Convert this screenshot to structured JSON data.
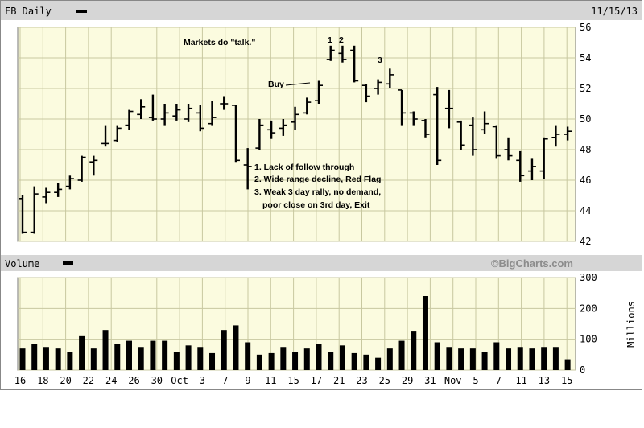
{
  "header": {
    "symbol_label": "FB Daily",
    "date": "11/15/13",
    "volume_label": "Volume",
    "watermark": "©BigCharts.com",
    "volume_units": "Millions"
  },
  "annotations": {
    "title": "Markets do \"talk.\"",
    "buy": "Buy",
    "marker_1": "1",
    "marker_2": "2",
    "marker_3": "3",
    "note_lines": [
      "1. Lack of follow through",
      "2. Wide range decline, Red Flag",
      "3. Weak 3 day rally, no demand,",
      "poor close on 3rd day, Exit"
    ]
  },
  "colors": {
    "panel_bg": "#fbfbdf",
    "grid": "#c8c8a0",
    "bar": "#000000",
    "header_bg": "#d6d6d6"
  },
  "chart_data": [
    {
      "type": "ohlc",
      "title": "FB Daily",
      "ylim": [
        42,
        56
      ],
      "ytick_labels": [
        "42",
        "44",
        "46",
        "48",
        "50",
        "52",
        "54",
        "56"
      ],
      "xtick_labels": [
        "16",
        "18",
        "20",
        "22",
        "24",
        "26",
        "30",
        "Oct",
        "3",
        "7",
        "9",
        "11",
        "15",
        "17",
        "21",
        "23",
        "25",
        "29",
        "31",
        "Nov",
        "5",
        "7",
        "11",
        "13",
        "15"
      ],
      "grid": true,
      "bars": [
        {
          "date": "9/16",
          "open": 44.8,
          "high": 45.0,
          "low": 42.5,
          "close": 42.6
        },
        {
          "date": "9/17",
          "open": 42.6,
          "high": 45.6,
          "low": 42.5,
          "close": 45.1
        },
        {
          "date": "9/18",
          "open": 44.9,
          "high": 45.5,
          "low": 44.5,
          "close": 45.2
        },
        {
          "date": "9/19",
          "open": 45.2,
          "high": 45.8,
          "low": 44.9,
          "close": 45.4
        },
        {
          "date": "9/20",
          "open": 45.6,
          "high": 46.3,
          "low": 45.4,
          "close": 46.1
        },
        {
          "date": "9/23",
          "open": 46.0,
          "high": 47.6,
          "low": 45.9,
          "close": 47.5
        },
        {
          "date": "9/24",
          "open": 47.2,
          "high": 47.6,
          "low": 46.3,
          "close": 47.3
        },
        {
          "date": "9/25",
          "open": 48.4,
          "high": 49.6,
          "low": 48.2,
          "close": 48.4
        },
        {
          "date": "9/26",
          "open": 48.6,
          "high": 49.6,
          "low": 48.5,
          "close": 49.4
        },
        {
          "date": "9/27",
          "open": 49.6,
          "high": 50.6,
          "low": 49.3,
          "close": 50.5
        },
        {
          "date": "9/30",
          "open": 50.3,
          "high": 51.3,
          "low": 50.0,
          "close": 50.8
        },
        {
          "date": "10/1",
          "open": 50.1,
          "high": 51.6,
          "low": 49.9,
          "close": 50.0
        },
        {
          "date": "10/2",
          "open": 50.0,
          "high": 51.0,
          "low": 49.6,
          "close": 50.4
        },
        {
          "date": "10/3",
          "open": 50.2,
          "high": 51.0,
          "low": 49.9,
          "close": 50.6
        },
        {
          "date": "10/4",
          "open": 50.0,
          "high": 51.0,
          "low": 49.8,
          "close": 50.7
        },
        {
          "date": "10/7",
          "open": 50.4,
          "high": 50.9,
          "low": 49.2,
          "close": 49.4
        },
        {
          "date": "10/8",
          "open": 49.7,
          "high": 51.2,
          "low": 49.6,
          "close": 50.1
        },
        {
          "date": "10/9",
          "open": 51.0,
          "high": 51.5,
          "low": 50.6,
          "close": 51.0
        },
        {
          "date": "10/10",
          "open": 50.9,
          "high": 50.9,
          "low": 47.2,
          "close": 47.3
        },
        {
          "date": "10/11",
          "open": 47.0,
          "high": 48.1,
          "low": 45.4,
          "close": 46.9
        },
        {
          "date": "10/14",
          "open": 48.1,
          "high": 50.0,
          "low": 48.0,
          "close": 49.6
        },
        {
          "date": "10/15",
          "open": 49.3,
          "high": 49.9,
          "low": 48.7,
          "close": 49.1
        },
        {
          "date": "10/16",
          "open": 49.4,
          "high": 50.0,
          "low": 48.9,
          "close": 49.6
        },
        {
          "date": "10/17",
          "open": 49.8,
          "high": 50.8,
          "low": 49.3,
          "close": 50.3
        },
        {
          "date": "10/18",
          "open": 50.4,
          "high": 51.4,
          "low": 50.3,
          "close": 51.1
        },
        {
          "date": "10/21",
          "open": 51.2,
          "high": 52.5,
          "low": 51.0,
          "close": 52.2
        },
        {
          "date": "10/22",
          "open": 53.9,
          "high": 54.8,
          "low": 53.8,
          "close": 54.5
        },
        {
          "date": "10/23",
          "open": 54.3,
          "high": 54.8,
          "low": 53.7,
          "close": 53.9
        },
        {
          "date": "10/24",
          "open": 54.5,
          "high": 54.8,
          "low": 52.4,
          "close": 52.5
        },
        {
          "date": "10/25",
          "open": 52.2,
          "high": 52.3,
          "low": 51.1,
          "close": 51.5
        },
        {
          "date": "10/28",
          "open": 52.0,
          "high": 52.6,
          "low": 51.6,
          "close": 52.4
        },
        {
          "date": "10/29",
          "open": 52.3,
          "high": 53.3,
          "low": 52.0,
          "close": 52.9
        },
        {
          "date": "10/30",
          "open": 51.9,
          "high": 51.9,
          "low": 49.6,
          "close": 50.4
        },
        {
          "date": "10/31",
          "open": 50.4,
          "high": 50.5,
          "low": 49.6,
          "close": 50.0
        },
        {
          "date": "11/1",
          "open": 49.9,
          "high": 50.0,
          "low": 48.8,
          "close": 49.0
        },
        {
          "date": "11/4",
          "open": 51.6,
          "high": 52.1,
          "low": 47.0,
          "close": 47.3
        },
        {
          "date": "11/5",
          "open": 50.7,
          "high": 51.9,
          "low": 49.4,
          "close": 50.7
        },
        {
          "date": "11/6",
          "open": 49.8,
          "high": 49.9,
          "low": 48.0,
          "close": 48.3
        },
        {
          "date": "11/7",
          "open": 49.6,
          "high": 50.1,
          "low": 47.6,
          "close": 48.0
        },
        {
          "date": "11/8",
          "open": 49.3,
          "high": 50.5,
          "low": 49.0,
          "close": 49.7
        },
        {
          "date": "11/11",
          "open": 49.5,
          "high": 49.6,
          "low": 47.4,
          "close": 47.6
        },
        {
          "date": "11/12",
          "open": 48.0,
          "high": 48.8,
          "low": 47.3,
          "close": 47.6
        },
        {
          "date": "11/13",
          "open": 47.3,
          "high": 47.9,
          "low": 45.9,
          "close": 46.3
        },
        {
          "date": "11/14",
          "open": 46.6,
          "high": 47.4,
          "low": 46.0,
          "close": 46.9
        },
        {
          "date": "11/15",
          "open": 46.6,
          "high": 48.8,
          "low": 46.1,
          "close": 48.7
        },
        {
          "date": "11/15b",
          "open": 48.8,
          "high": 49.6,
          "low": 48.2,
          "close": 49.0
        },
        {
          "date": "11/15c",
          "open": 49.0,
          "high": 49.5,
          "low": 48.6,
          "close": 49.2
        }
      ]
    },
    {
      "type": "bar",
      "title": "Volume",
      "ylabel": "Millions",
      "ylim": [
        0,
        300
      ],
      "ytick_labels": [
        "0",
        "100",
        "200",
        "300"
      ],
      "values": [
        70,
        85,
        75,
        70,
        60,
        110,
        70,
        130,
        85,
        95,
        75,
        95,
        95,
        60,
        80,
        75,
        55,
        130,
        145,
        90,
        50,
        55,
        75,
        60,
        70,
        85,
        60,
        80,
        55,
        50,
        40,
        70,
        95,
        125,
        240,
        90,
        75,
        70,
        70,
        60,
        90,
        70,
        75,
        70,
        75,
        75,
        35
      ]
    }
  ]
}
